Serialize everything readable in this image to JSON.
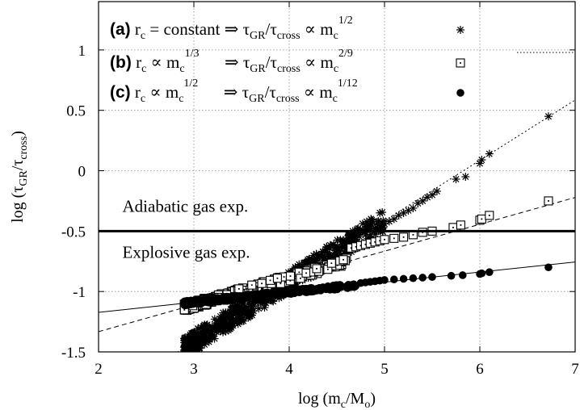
{
  "chart_data": {
    "type": "scatter",
    "xlabel": {
      "main": "log (m",
      "sub": "c",
      "mid": "/M",
      "sub2": "o",
      "end": ")"
    },
    "ylabel": {
      "main": "log (τ",
      "sub": "GR",
      "mid": "/τ",
      "sub2": "cross",
      "end": ")"
    },
    "xlim": [
      2,
      7
    ],
    "ylim": [
      -1.5,
      1.4
    ],
    "x_ticks": [
      2,
      3,
      4,
      5,
      6,
      7
    ],
    "x_tick_labels": [
      "2",
      "3",
      "4",
      "5",
      "6",
      "7"
    ],
    "y_ticks": [
      -1.5,
      -1,
      -0.5,
      0,
      0.5,
      1
    ],
    "y_tick_labels": [
      "-1.5",
      "-1",
      "-0.5",
      "0",
      "0.5",
      "1"
    ],
    "grid": true,
    "legend_position": "top",
    "series": [
      {
        "id": "a",
        "marker": "asterisk",
        "line_style": "dotted",
        "fit": {
          "slope": 0.5,
          "intercept": -2.914
        },
        "dense_x_range": [
          2.9,
          5.0
        ],
        "points": [
          [
            5.0,
            -0.44
          ],
          [
            5.05,
            -0.42
          ],
          [
            5.1,
            -0.4
          ],
          [
            5.15,
            -0.37
          ],
          [
            5.2,
            -0.35
          ],
          [
            5.25,
            -0.33
          ],
          [
            5.3,
            -0.31
          ],
          [
            5.35,
            -0.27
          ],
          [
            5.4,
            -0.25
          ],
          [
            5.45,
            -0.22
          ],
          [
            5.5,
            -0.2
          ],
          [
            5.55,
            -0.17
          ],
          [
            5.75,
            -0.07
          ],
          [
            5.85,
            -0.05
          ],
          [
            6.0,
            0.06
          ],
          [
            6.02,
            0.09
          ],
          [
            6.1,
            0.14
          ],
          [
            6.72,
            0.45
          ]
        ]
      },
      {
        "id": "b",
        "marker": "dotted-square",
        "line_style": "dashed",
        "fit": {
          "slope": 0.2222,
          "intercept": -1.777
        },
        "dense_x_range": [
          2.9,
          4.6
        ],
        "points": [
          [
            4.65,
            -0.64
          ],
          [
            4.7,
            -0.63
          ],
          [
            4.75,
            -0.62
          ],
          [
            4.8,
            -0.61
          ],
          [
            4.85,
            -0.6
          ],
          [
            4.9,
            -0.59
          ],
          [
            4.95,
            -0.58
          ],
          [
            5.0,
            -0.57
          ],
          [
            5.1,
            -0.56
          ],
          [
            5.2,
            -0.55
          ],
          [
            5.3,
            -0.53
          ],
          [
            5.4,
            -0.51
          ],
          [
            5.5,
            -0.5
          ],
          [
            5.72,
            -0.47
          ],
          [
            5.8,
            -0.45
          ],
          [
            6.0,
            -0.41
          ],
          [
            6.02,
            -0.4
          ],
          [
            6.1,
            -0.37
          ],
          [
            6.72,
            -0.25
          ]
        ]
      },
      {
        "id": "c",
        "marker": "filled-circle",
        "line_style": "solid",
        "fit": {
          "slope": 0.0833,
          "intercept": -1.339
        },
        "dense_x_range": [
          2.9,
          4.7
        ],
        "points": [
          [
            4.75,
            -0.93
          ],
          [
            4.8,
            -0.925
          ],
          [
            4.85,
            -0.92
          ],
          [
            4.9,
            -0.915
          ],
          [
            4.95,
            -0.91
          ],
          [
            5.0,
            -0.905
          ],
          [
            5.1,
            -0.9
          ],
          [
            5.2,
            -0.895
          ],
          [
            5.3,
            -0.89
          ],
          [
            5.4,
            -0.885
          ],
          [
            5.5,
            -0.88
          ],
          [
            5.7,
            -0.87
          ],
          [
            5.82,
            -0.865
          ],
          [
            6.0,
            -0.855
          ],
          [
            6.02,
            -0.85
          ],
          [
            6.1,
            -0.84
          ],
          [
            6.72,
            -0.8
          ]
        ]
      }
    ],
    "hline": {
      "y": -0.5
    },
    "annotations": [
      {
        "text": "Adiabatic gas exp.",
        "x": 2.25,
        "y": -0.34
      },
      {
        "text": "Explosive gas exp.",
        "x": 2.25,
        "y": -0.72
      }
    ],
    "legend": [
      {
        "series": "a",
        "label": "(a)",
        "lhs": "r",
        "lhs_sub": "c",
        "lhs_rest": " = constant",
        "lhs_sup": "",
        "arrow": "⇒",
        "rhs_a": "τ",
        "rhs_a_sub": "GR",
        "rhs_b": "/τ",
        "rhs_b_sub": "cross",
        "rhs_c": " ∝ m",
        "rhs_c_sub": "c",
        "rhs_c_sup": "1/2"
      },
      {
        "series": "b",
        "label": "(b)",
        "lhs": "r",
        "lhs_sub": "c",
        "lhs_rest": " ∝ m",
        "lhs_sub2": "c",
        "lhs_sup": "1/3",
        "arrow": "⇒",
        "rhs_a": "τ",
        "rhs_a_sub": "GR",
        "rhs_b": "/τ",
        "rhs_b_sub": "cross",
        "rhs_c": " ∝ m",
        "rhs_c_sub": "c",
        "rhs_c_sup": "2/9"
      },
      {
        "series": "c",
        "label": "(c)",
        "lhs": "r",
        "lhs_sub": "c",
        "lhs_rest": " ∝ m",
        "lhs_sub2": "c",
        "lhs_sup": "1/2",
        "arrow": "⇒",
        "rhs_a": "τ",
        "rhs_a_sub": "GR",
        "rhs_b": "/τ",
        "rhs_b_sub": "cross",
        "rhs_c": " ∝ m",
        "rhs_c_sub": "c",
        "rhs_c_sup": "1/12"
      }
    ]
  }
}
